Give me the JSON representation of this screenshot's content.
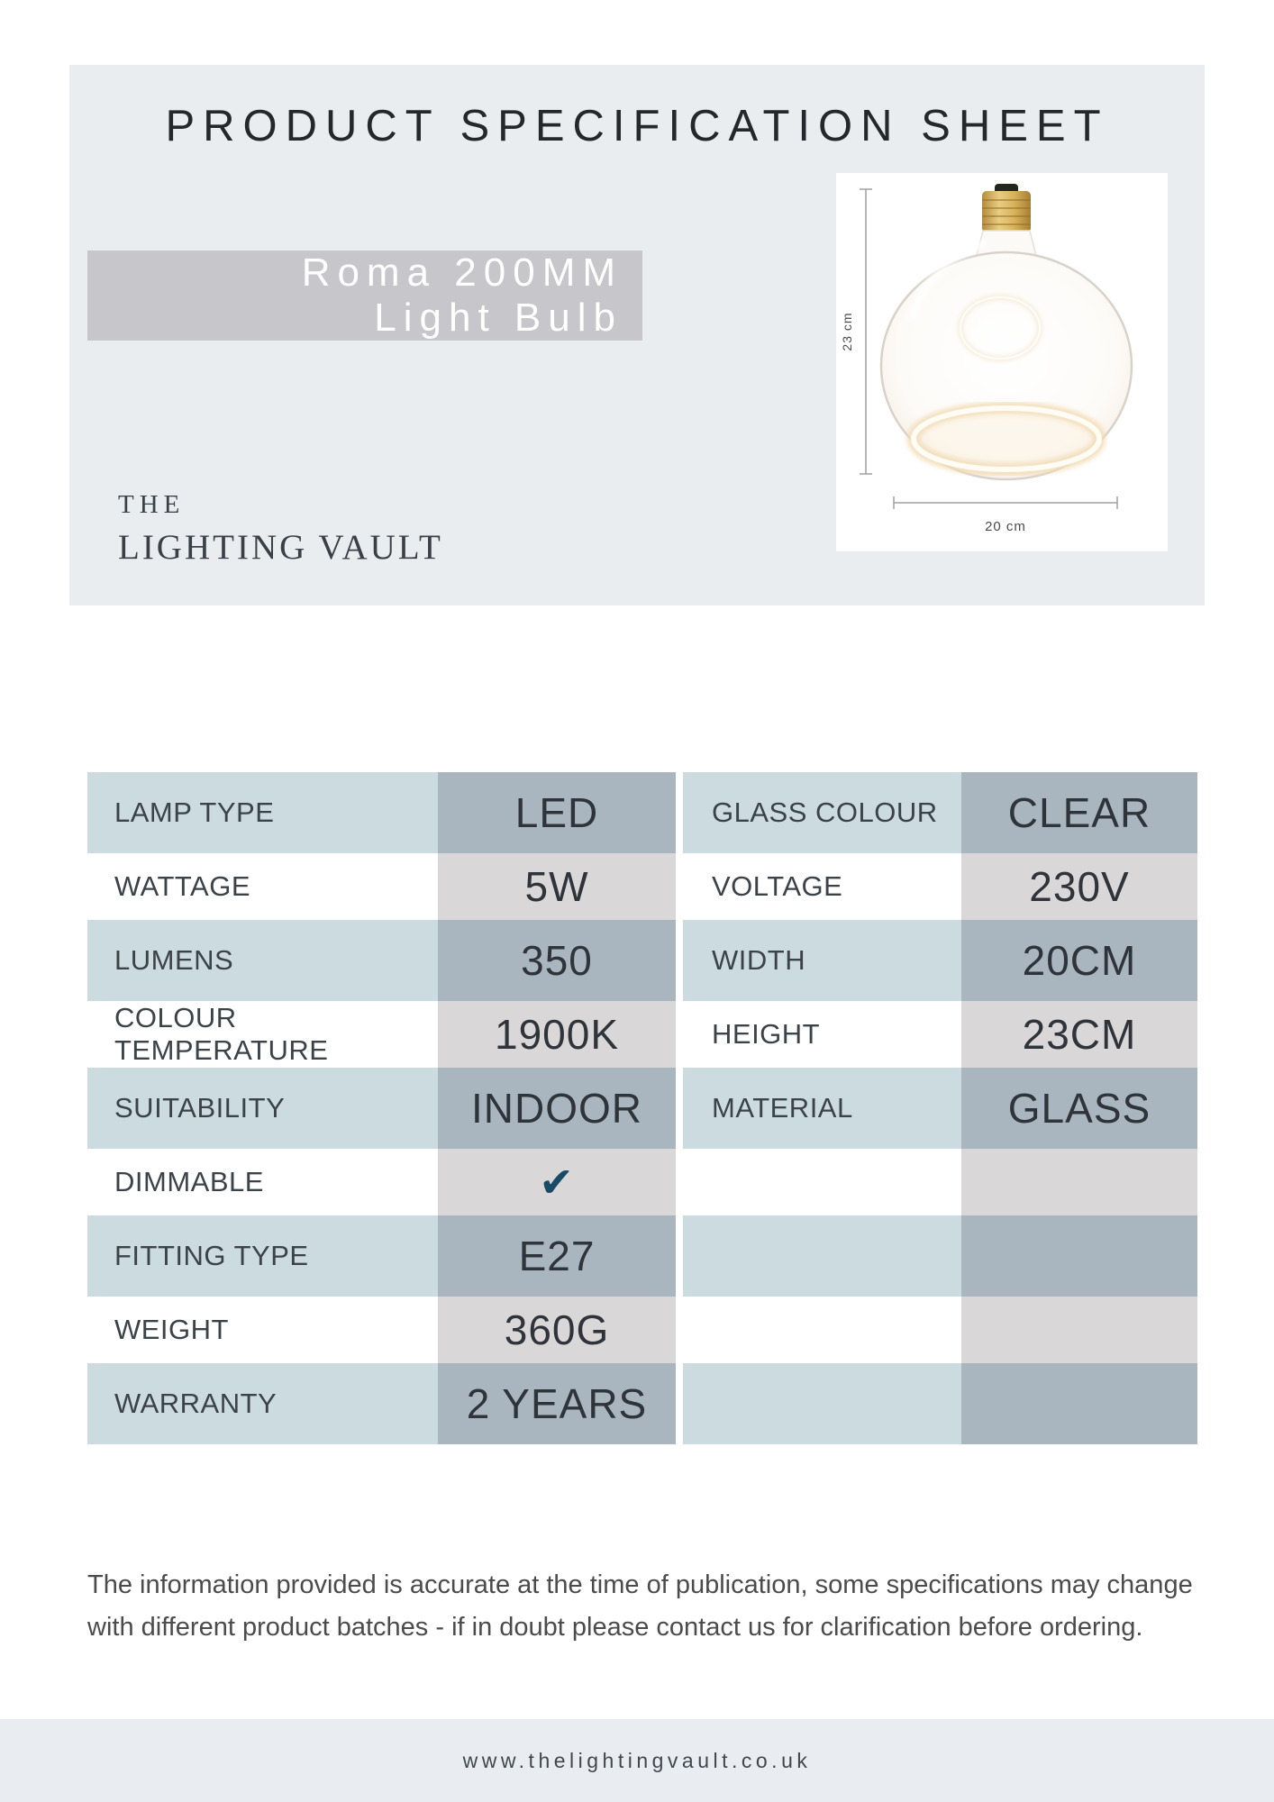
{
  "header": {
    "title": "PRODUCT SPECIFICATION SHEET",
    "product_name": {
      "line1": "Roma 200MM",
      "line2": "Light Bulb"
    },
    "brand": {
      "line1": "THE",
      "line2": "LIGHTING VAULT"
    }
  },
  "product_image": {
    "height_label": "23 cm",
    "width_label": "20 cm"
  },
  "spec_tables": {
    "left": [
      {
        "label": "LAMP TYPE",
        "value": "LED",
        "tinted": true
      },
      {
        "label": "WATTAGE",
        "value": "5W",
        "tinted": false
      },
      {
        "label": "LUMENS",
        "value": "350",
        "tinted": true
      },
      {
        "label": "COLOUR TEMPERATURE",
        "value": "1900K",
        "tinted": false
      },
      {
        "label": "SUITABILITY",
        "value": "INDOOR",
        "tinted": true
      },
      {
        "label": "DIMMABLE",
        "value": "",
        "tinted": false,
        "check": true
      },
      {
        "label": "FITTING TYPE",
        "value": "E27",
        "tinted": true
      },
      {
        "label": "WEIGHT",
        "value": "360G",
        "tinted": false
      },
      {
        "label": "WARRANTY",
        "value": "2 YEARS",
        "tinted": true
      }
    ],
    "right": [
      {
        "label": "GLASS COLOUR",
        "value": "CLEAR",
        "tinted": true
      },
      {
        "label": "VOLTAGE",
        "value": "230V",
        "tinted": false
      },
      {
        "label": "WIDTH",
        "value": "20CM",
        "tinted": true
      },
      {
        "label": "HEIGHT",
        "value": "23CM",
        "tinted": false
      },
      {
        "label": "MATERIAL",
        "value": "GLASS",
        "tinted": true
      },
      {
        "label": "",
        "value": "",
        "tinted": false
      },
      {
        "label": "",
        "value": "",
        "tinted": true
      },
      {
        "label": "",
        "value": "",
        "tinted": false
      },
      {
        "label": "",
        "value": "",
        "tinted": true
      }
    ]
  },
  "footer": {
    "disclaimer_line1": "The information provided is accurate at the time of publication, some specifications may change",
    "disclaimer_line2": "with different product batches - if in doubt please contact us for clarification before ordering.",
    "website": "www.thelightingvault.co.uk"
  },
  "icons": {
    "dimmable_check": "✔"
  },
  "colors": {
    "panel-bg": "#e9edf0",
    "name-box-bg": "#c7c6ca",
    "label-cell-bg": "#ccdbe0",
    "value-tinted-bg": "#a9b6c0",
    "value-plain-bg": "#dad7d8",
    "check-color": "#1a4b66",
    "footer-bar-bg": "#e9edf1"
  }
}
